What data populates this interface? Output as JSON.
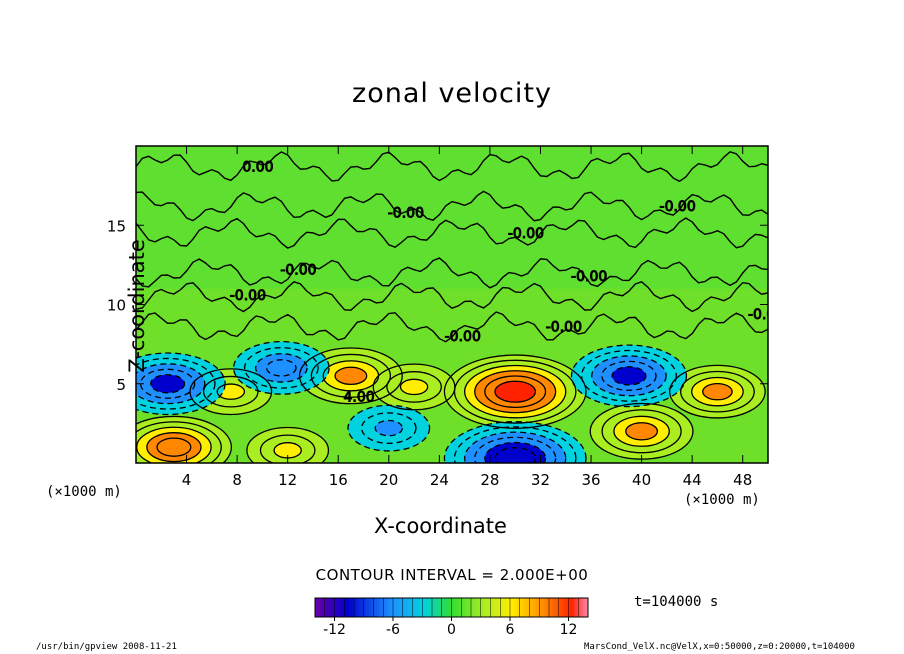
{
  "chart_data": {
    "type": "heatmap",
    "title": "zonal velocity",
    "xlabel": "X-coordinate",
    "ylabel": "Z-coordinate",
    "x_unit": "(×1000 m)",
    "y_unit": "(×1000 m)",
    "xlim": [
      0,
      50
    ],
    "ylim": [
      0,
      20
    ],
    "x_ticks": [
      4,
      8,
      12,
      16,
      20,
      24,
      28,
      32,
      36,
      40,
      44,
      48
    ],
    "y_ticks": [
      5,
      10,
      15
    ],
    "contour_interval_text": "CONTOUR INTERVAL = 2.000E+00",
    "contour_labels": [
      "0.00",
      "-0.00",
      "4.00"
    ],
    "colorbar": {
      "range": [
        -14,
        14
      ],
      "ticks": [
        -12,
        -6,
        0,
        6,
        12
      ]
    },
    "time_label": "t=104000 s",
    "features": [
      {
        "kind": "positive",
        "x": 30,
        "z": 4.5,
        "peak": 12
      },
      {
        "kind": "positive",
        "x": 17,
        "z": 5.5,
        "peak": 8
      },
      {
        "kind": "positive",
        "x": 40,
        "z": 2.0,
        "peak": 8
      },
      {
        "kind": "positive",
        "x": 3,
        "z": 1.0,
        "peak": 9
      },
      {
        "kind": "positive",
        "x": 12,
        "z": 0.8,
        "peak": 6
      },
      {
        "kind": "positive",
        "x": 46,
        "z": 4.5,
        "peak": 7
      },
      {
        "kind": "positive",
        "x": 7.5,
        "z": 4.5,
        "peak": 6
      },
      {
        "kind": "positive",
        "x": 22,
        "z": 4.8,
        "peak": 6
      },
      {
        "kind": "negative",
        "x": 2.5,
        "z": 5.0,
        "peak": -9
      },
      {
        "kind": "negative",
        "x": 11.5,
        "z": 6.0,
        "peak": -7
      },
      {
        "kind": "negative",
        "x": 30,
        "z": 0.3,
        "peak": -12
      },
      {
        "kind": "negative",
        "x": 39,
        "z": 5.5,
        "peak": -9
      },
      {
        "kind": "negative",
        "x": 20,
        "z": 2.2,
        "peak": -6
      }
    ]
  },
  "footer": {
    "left": "/usr/bin/gpview   2008-11-21",
    "right": "MarsCond_VelX.nc@VelX,x=0:50000,z=0:20000,t=104000"
  }
}
